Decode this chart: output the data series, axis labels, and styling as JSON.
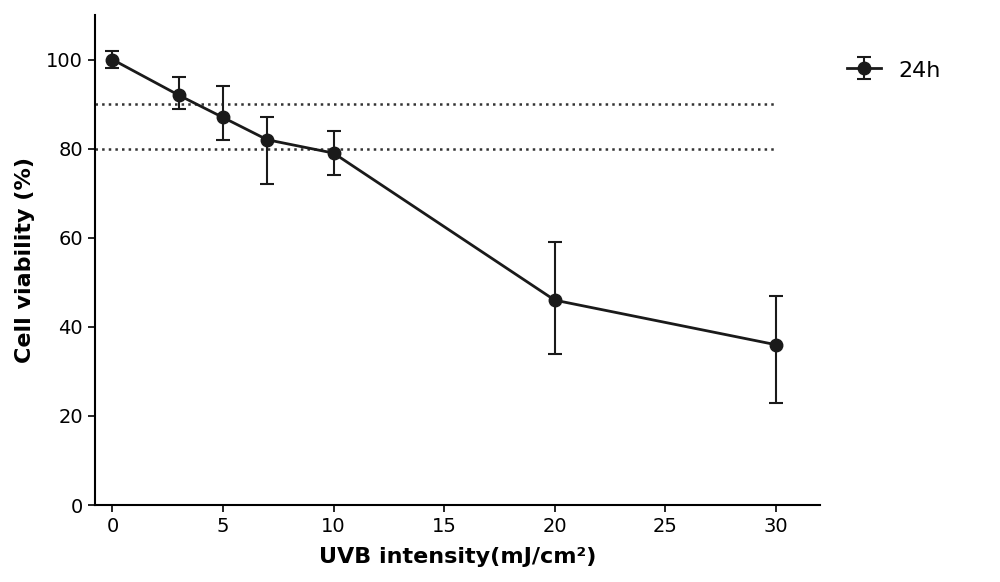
{
  "x": [
    0,
    3,
    5,
    7,
    10,
    20,
    30
  ],
  "y": [
    100,
    92,
    87,
    82,
    79,
    46,
    36
  ],
  "yerr_upper": [
    2,
    4,
    7,
    5,
    5,
    13,
    11
  ],
  "yerr_lower": [
    2,
    3,
    5,
    10,
    5,
    12,
    13
  ],
  "hline_values": [
    90,
    80
  ],
  "xlabel": "UVB intensity(mJ/cm²)",
  "ylabel": "Cell viability (%)",
  "xlim": [
    -0.8,
    32
  ],
  "ylim": [
    0,
    110
  ],
  "xticks": [
    0,
    5,
    10,
    15,
    20,
    25,
    30
  ],
  "yticks": [
    0,
    20,
    40,
    60,
    80,
    100
  ],
  "line_color": "#1a1a1a",
  "marker_color": "#1a1a1a",
  "marker_size": 9,
  "linewidth": 2.0,
  "legend_label": "24h",
  "hline_color": "#333333",
  "hline_linestyle": "dotted",
  "hline_linewidth": 1.8,
  "background_color": "#ffffff",
  "label_fontsize": 16,
  "tick_fontsize": 14,
  "legend_fontsize": 16,
  "capsize": 5,
  "elinewidth": 1.5,
  "capthick": 1.5
}
